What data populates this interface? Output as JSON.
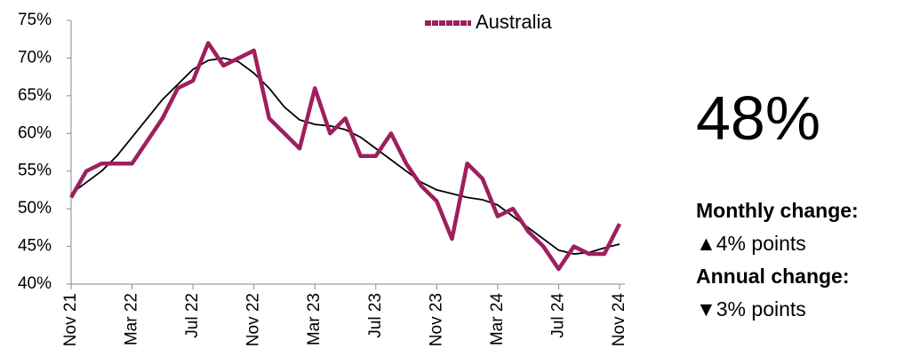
{
  "chart_data": {
    "type": "line",
    "categories": [
      "Nov 21",
      null,
      null,
      null,
      "Mar 22",
      null,
      null,
      null,
      "Jul 22",
      null,
      null,
      null,
      "Nov 22",
      null,
      null,
      null,
      "Mar 23",
      null,
      null,
      null,
      "Jul 23",
      null,
      null,
      null,
      "Nov 23",
      null,
      null,
      null,
      "Mar 24",
      null,
      null,
      null,
      "Jul 24",
      null,
      null,
      null,
      "Nov 24"
    ],
    "series": [
      {
        "name": "Australia",
        "color": "#9e1f5e",
        "values": [
          51.5,
          55,
          56,
          56,
          56,
          59,
          62,
          66,
          67,
          72,
          69,
          70,
          71,
          62,
          60,
          58,
          66,
          60,
          62,
          57,
          57,
          60,
          56,
          53,
          51,
          46,
          56,
          54,
          49,
          50,
          47,
          45,
          42,
          45,
          44,
          44,
          48
        ]
      },
      {
        "color": "#000000",
        "values": [
          52,
          53.5,
          55,
          57,
          59.5,
          62,
          64.5,
          66.5,
          68.5,
          69.7,
          70,
          69.5,
          68,
          66,
          63.5,
          61.8,
          61.2,
          61,
          60.5,
          59.5,
          58,
          56.5,
          55,
          53.5,
          52.5,
          52,
          51.5,
          51.2,
          50.5,
          49,
          47.5,
          46,
          44.5,
          44,
          44.2,
          44.8,
          45.3
        ]
      }
    ],
    "ylim": [
      40,
      75
    ],
    "yticks": [
      {
        "value": 40,
        "label": "40%"
      },
      {
        "value": 45,
        "label": "45%"
      },
      {
        "value": 50,
        "label": "50%"
      },
      {
        "value": 55,
        "label": "55%"
      },
      {
        "value": 60,
        "label": "60%"
      },
      {
        "value": 65,
        "label": "65%"
      },
      {
        "value": 70,
        "label": "70%"
      },
      {
        "value": 75,
        "label": "75%"
      }
    ],
    "grid": false
  },
  "panel": {
    "headline": "48%",
    "monthly_label": "Monthly change:",
    "monthly_value": "▲4% points",
    "annual_label": "Annual change:",
    "annual_value": "▼3% points"
  }
}
